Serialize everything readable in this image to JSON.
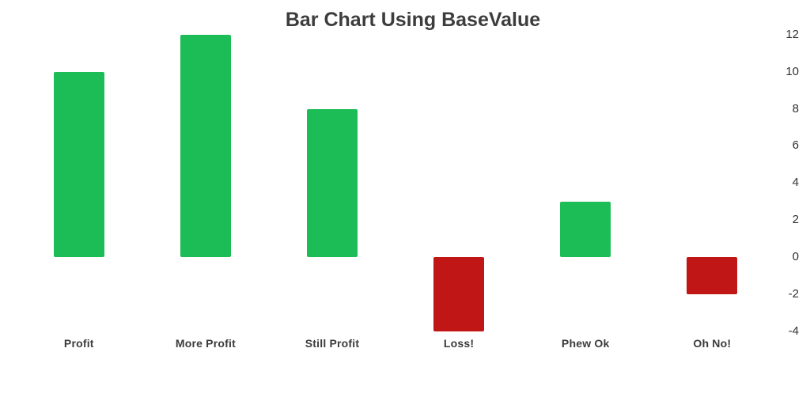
{
  "chart_data": {
    "type": "bar",
    "title": "Bar Chart Using BaseValue",
    "categories": [
      "Profit",
      "More Profit",
      "Still Profit",
      "Loss!",
      "Phew Ok",
      "Oh No!"
    ],
    "values": [
      10,
      12,
      8,
      -4,
      3,
      -2
    ],
    "base_value": 0,
    "ylim": [
      -4,
      12
    ],
    "yticks": [
      12,
      10,
      8,
      6,
      4,
      2,
      0,
      -2,
      -4
    ],
    "y_axis_side": "right",
    "grid": false,
    "legend": "none",
    "xlabel": "",
    "ylabel": "",
    "positive_color": "#1cbc56",
    "negative_color": "#c01615",
    "background_color": "#ffffff",
    "title_color": "#3d3d3d",
    "tick_label_color": "#333333"
  }
}
